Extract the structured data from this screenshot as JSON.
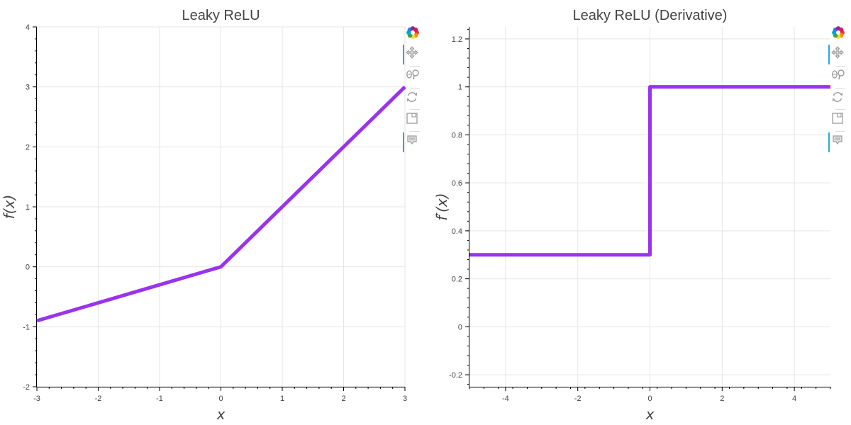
{
  "chart_data": [
    {
      "type": "line",
      "title": "Leaky ReLU",
      "xlabel": "x",
      "ylabel": "f(x)",
      "xlim": [
        -3,
        3
      ],
      "ylim": [
        -2,
        4
      ],
      "x_ticks": [
        -3,
        -2,
        -1,
        0,
        1,
        2,
        3
      ],
      "y_ticks": [
        -2,
        -1,
        0,
        1,
        2,
        3,
        4
      ],
      "grid": true,
      "series": [
        {
          "color": "#9933ee",
          "x": [
            -3,
            0,
            3
          ],
          "y": [
            -0.9,
            0,
            3
          ]
        }
      ]
    },
    {
      "type": "line",
      "title": "Leaky ReLU (Derivative)",
      "xlabel": "x",
      "ylabel": "f′(x)",
      "xlim": [
        -5,
        5
      ],
      "ylim": [
        -0.25,
        1.25
      ],
      "x_ticks": [
        -4,
        -2,
        0,
        2,
        4
      ],
      "y_ticks": [
        -0.2,
        0,
        0.2,
        0.4,
        0.6,
        0.8,
        1,
        1.2
      ],
      "grid": true,
      "series": [
        {
          "color": "#9933ee",
          "x": [
            -5,
            0,
            0,
            5
          ],
          "y": [
            0.3,
            0.3,
            1,
            1
          ]
        }
      ]
    }
  ],
  "toolbar": {
    "tools": [
      "bokeh-logo-icon",
      "pan-icon",
      "wheel-zoom-icon",
      "reset-icon",
      "save-icon",
      "hover-icon"
    ]
  }
}
